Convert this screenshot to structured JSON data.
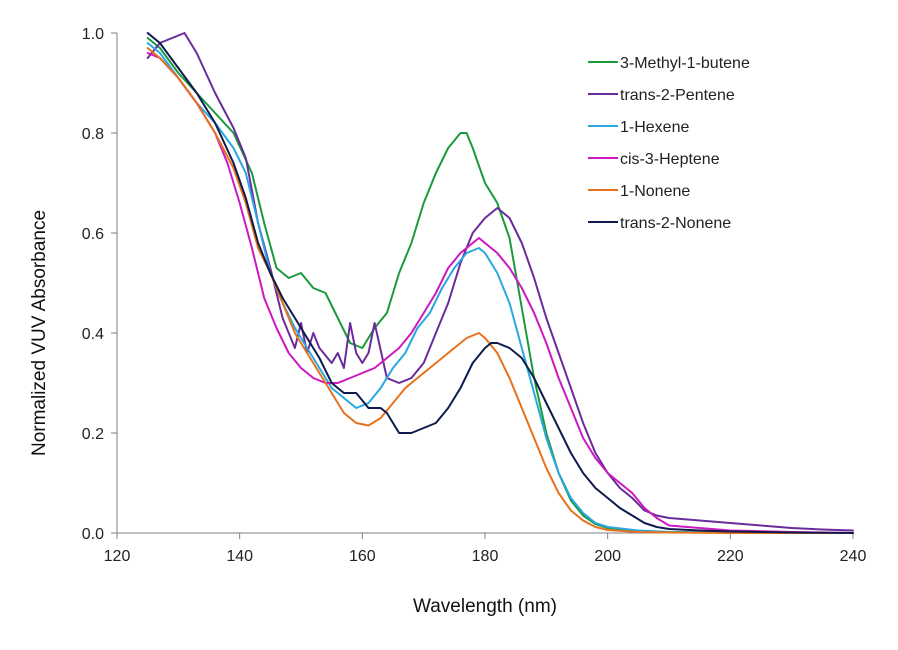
{
  "chart_data": {
    "type": "line",
    "title": "",
    "xlabel": "Wavelength (nm)",
    "ylabel": "Normalized VUV Absorbance",
    "xlim": [
      120,
      240
    ],
    "ylim": [
      0,
      1.0
    ],
    "x_ticks": [
      120,
      140,
      160,
      180,
      200,
      220,
      240
    ],
    "x_tick_labels": [
      "120",
      "140",
      "160",
      "180",
      "200",
      "220",
      "240"
    ],
    "y_ticks": [
      0,
      0.2,
      0.4,
      0.6,
      0.8,
      1.0
    ],
    "y_tick_labels": [
      "0.0",
      "0.2",
      "0.4",
      "0.6",
      "0.8",
      "1.0"
    ],
    "grid": false,
    "legend_position": "top-right",
    "series": [
      {
        "name": "3-Methyl-1-butene",
        "color": "#1a9a3c",
        "x": [
          125,
          127,
          130,
          133,
          136,
          139,
          142,
          144,
          146,
          148,
          150,
          152,
          154,
          156,
          158,
          160,
          162,
          164,
          166,
          168,
          170,
          172,
          174,
          176,
          177,
          178,
          180,
          182,
          184,
          186,
          188,
          190,
          192,
          194,
          196,
          198,
          200,
          205,
          210,
          220,
          230,
          240
        ],
        "y": [
          0.99,
          0.97,
          0.92,
          0.88,
          0.84,
          0.8,
          0.72,
          0.62,
          0.53,
          0.51,
          0.52,
          0.49,
          0.48,
          0.43,
          0.38,
          0.37,
          0.41,
          0.44,
          0.52,
          0.58,
          0.66,
          0.72,
          0.77,
          0.8,
          0.8,
          0.77,
          0.7,
          0.66,
          0.59,
          0.45,
          0.31,
          0.2,
          0.12,
          0.065,
          0.035,
          0.018,
          0.01,
          0.004,
          0.002,
          0.001,
          0.0,
          0.0
        ]
      },
      {
        "name": "trans-2-Pentene",
        "color": "#6a2c9a",
        "x": [
          125,
          127,
          129,
          131,
          133,
          136,
          139,
          141,
          143,
          145,
          147,
          149,
          150,
          151,
          152,
          153,
          155,
          156,
          157,
          158,
          159,
          160,
          161,
          162,
          164,
          166,
          168,
          170,
          172,
          174,
          176,
          178,
          180,
          182,
          184,
          186,
          188,
          190,
          192,
          194,
          196,
          198,
          200,
          202,
          204,
          206,
          208,
          210,
          215,
          220,
          225,
          230,
          235,
          240
        ],
        "y": [
          0.95,
          0.98,
          0.99,
          1.0,
          0.96,
          0.88,
          0.81,
          0.75,
          0.62,
          0.53,
          0.43,
          0.37,
          0.42,
          0.36,
          0.4,
          0.37,
          0.34,
          0.36,
          0.33,
          0.42,
          0.36,
          0.34,
          0.36,
          0.42,
          0.31,
          0.3,
          0.31,
          0.34,
          0.4,
          0.46,
          0.54,
          0.6,
          0.63,
          0.65,
          0.63,
          0.58,
          0.51,
          0.43,
          0.36,
          0.29,
          0.22,
          0.16,
          0.12,
          0.09,
          0.07,
          0.045,
          0.035,
          0.03,
          0.025,
          0.02,
          0.015,
          0.01,
          0.007,
          0.005
        ]
      },
      {
        "name": "1-Hexene",
        "color": "#29a8e0",
        "x": [
          125,
          127,
          130,
          133,
          136,
          139,
          141,
          143,
          145,
          147,
          149,
          151,
          153,
          155,
          157,
          159,
          161,
          163,
          165,
          167,
          169,
          171,
          173,
          175,
          177,
          179,
          180,
          182,
          184,
          186,
          188,
          190,
          192,
          194,
          196,
          198,
          200,
          205,
          210,
          220,
          230,
          240
        ],
        "y": [
          0.98,
          0.96,
          0.91,
          0.86,
          0.82,
          0.77,
          0.72,
          0.62,
          0.52,
          0.46,
          0.41,
          0.37,
          0.33,
          0.29,
          0.27,
          0.25,
          0.26,
          0.29,
          0.33,
          0.36,
          0.41,
          0.44,
          0.49,
          0.53,
          0.56,
          0.57,
          0.56,
          0.52,
          0.46,
          0.37,
          0.28,
          0.19,
          0.12,
          0.07,
          0.04,
          0.02,
          0.012,
          0.005,
          0.002,
          0.001,
          0.0,
          0.0
        ]
      },
      {
        "name": "cis-3-Heptene",
        "color": "#cc19c0",
        "x": [
          125,
          127,
          130,
          133,
          136,
          138,
          140,
          142,
          144,
          146,
          148,
          150,
          152,
          154,
          156,
          158,
          160,
          162,
          164,
          166,
          168,
          170,
          172,
          174,
          176,
          178,
          179,
          180,
          182,
          184,
          186,
          188,
          190,
          192,
          194,
          196,
          198,
          200,
          202,
          204,
          206,
          208,
          210,
          220,
          230,
          240
        ],
        "y": [
          0.96,
          0.95,
          0.91,
          0.86,
          0.8,
          0.74,
          0.66,
          0.57,
          0.47,
          0.41,
          0.36,
          0.33,
          0.31,
          0.3,
          0.3,
          0.31,
          0.32,
          0.33,
          0.35,
          0.37,
          0.4,
          0.44,
          0.48,
          0.53,
          0.56,
          0.58,
          0.59,
          0.58,
          0.56,
          0.53,
          0.49,
          0.44,
          0.38,
          0.31,
          0.25,
          0.19,
          0.15,
          0.12,
          0.1,
          0.08,
          0.05,
          0.03,
          0.015,
          0.005,
          0.002,
          0.0
        ]
      },
      {
        "name": "1-Nonene",
        "color": "#e8711c",
        "x": [
          125,
          127,
          130,
          133,
          136,
          139,
          141,
          143,
          145,
          147,
          149,
          151,
          153,
          155,
          157,
          159,
          161,
          163,
          165,
          167,
          169,
          171,
          173,
          175,
          177,
          179,
          180,
          182,
          184,
          186,
          188,
          190,
          192,
          194,
          196,
          198,
          200,
          205,
          210,
          220,
          230,
          240
        ],
        "y": [
          0.97,
          0.95,
          0.91,
          0.86,
          0.8,
          0.73,
          0.66,
          0.57,
          0.52,
          0.46,
          0.4,
          0.36,
          0.32,
          0.28,
          0.24,
          0.22,
          0.215,
          0.23,
          0.26,
          0.29,
          0.31,
          0.33,
          0.35,
          0.37,
          0.39,
          0.4,
          0.39,
          0.36,
          0.31,
          0.25,
          0.19,
          0.13,
          0.08,
          0.045,
          0.025,
          0.012,
          0.006,
          0.002,
          0.001,
          0.0,
          0.0,
          0.0
        ]
      },
      {
        "name": "trans-2-Nonene",
        "color": "#101b4d",
        "x": [
          125,
          127,
          130,
          133,
          136,
          139,
          141,
          143,
          145,
          147,
          149,
          151,
          153,
          155,
          157,
          159,
          161,
          163,
          164,
          165,
          166,
          168,
          170,
          172,
          174,
          176,
          178,
          180,
          181,
          182,
          184,
          186,
          188,
          190,
          192,
          194,
          196,
          198,
          200,
          202,
          204,
          206,
          208,
          210,
          215,
          220,
          230,
          240
        ],
        "y": [
          1.0,
          0.98,
          0.93,
          0.88,
          0.82,
          0.74,
          0.67,
          0.58,
          0.52,
          0.47,
          0.43,
          0.39,
          0.35,
          0.3,
          0.28,
          0.28,
          0.25,
          0.25,
          0.24,
          0.22,
          0.2,
          0.2,
          0.21,
          0.22,
          0.25,
          0.29,
          0.34,
          0.37,
          0.38,
          0.38,
          0.37,
          0.35,
          0.31,
          0.26,
          0.21,
          0.16,
          0.12,
          0.09,
          0.07,
          0.05,
          0.035,
          0.02,
          0.012,
          0.008,
          0.005,
          0.003,
          0.001,
          0.0
        ]
      }
    ]
  }
}
